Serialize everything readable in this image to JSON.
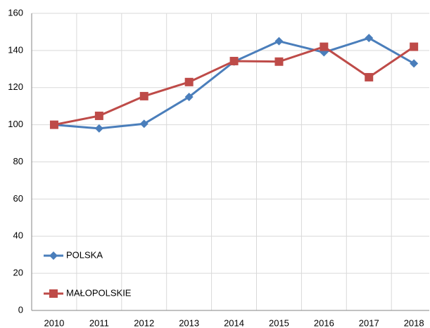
{
  "chart_data": {
    "type": "line",
    "categories": [
      "2010",
      "2011",
      "2012",
      "2013",
      "2014",
      "2015",
      "2016",
      "2017",
      "2018"
    ],
    "series": [
      {
        "name": "POLSKA",
        "color": "#4a7ebb",
        "marker": "diamond",
        "values": [
          100,
          98,
          100.5,
          115,
          134,
          145,
          139,
          146.7,
          133
        ]
      },
      {
        "name": "MAŁOPOLSKIE",
        "color": "#be4b48",
        "marker": "square",
        "values": [
          100,
          104.8,
          115.4,
          123,
          134.3,
          134,
          142,
          125.6,
          142
        ]
      }
    ],
    "ylim": [
      0,
      160
    ],
    "yticks": [
      0,
      20,
      40,
      60,
      80,
      100,
      120,
      140,
      160
    ],
    "grid": true,
    "legend": "lower left"
  }
}
